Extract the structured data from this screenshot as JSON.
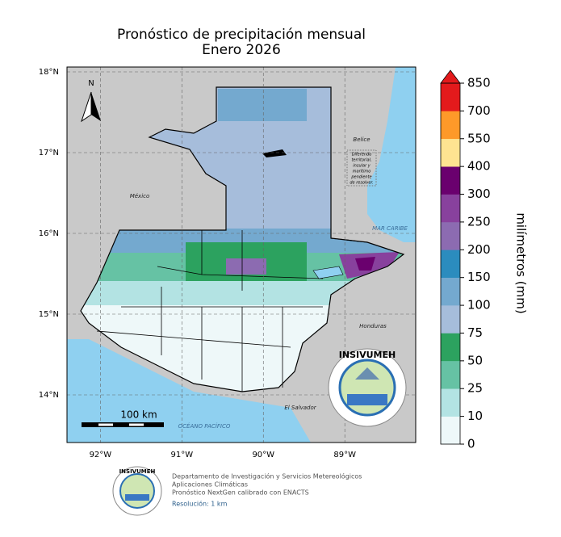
{
  "title": [
    "Pronóstico de precipitación mensual",
    "Enero 2026"
  ],
  "map": {
    "lonlim": [
      -92.41,
      -88.13
    ],
    "latlim": [
      13.41,
      18.06
    ],
    "lat_ticks": [
      {
        "value": 18,
        "label": "18°N"
      },
      {
        "value": 17,
        "label": "17°N"
      },
      {
        "value": 16,
        "label": "16°N"
      },
      {
        "value": 15,
        "label": "15°N"
      },
      {
        "value": 14,
        "label": "14°N"
      }
    ],
    "lon_ticks": [
      {
        "value": -92,
        "label": "92°W"
      },
      {
        "value": -91,
        "label": "91°W"
      },
      {
        "value": -90,
        "label": "90°W"
      },
      {
        "value": -89,
        "label": "89°W"
      }
    ],
    "labels": {
      "mexico": "México",
      "belize": "Belice",
      "dispute": [
        "Diferendo",
        "territorial,",
        "insular y",
        "marítimo",
        "pendiente",
        "de resolver."
      ],
      "caribbean": "MAR CARIBE",
      "honduras": "Honduras",
      "el_salvador": "El Salvador",
      "pacific": "OCÉANO PACÍFICO"
    },
    "north": "N",
    "scale_bar": "100 km",
    "logo_text": "INSIVUMEH"
  },
  "colorbar": {
    "label": "milímetros (mm)",
    "levels": [
      0,
      10,
      25,
      50,
      75,
      100,
      150,
      200,
      250,
      300,
      400,
      550,
      700,
      850
    ],
    "colors": [
      "#eef8f9",
      "#b3e3e3",
      "#66c2a4",
      "#2ca25f",
      "#a6bddb",
      "#74a9cf",
      "#2b8cbe",
      "#8c6bb1",
      "#88419d",
      "#6a006e",
      "#fee391",
      "#fe9929",
      "#e31a1c"
    ],
    "extend_color": "#e31a1c"
  },
  "footer": [
    "Departamento de Investigación y Servicios Metereológicos",
    "Aplicaciones Climáticas",
    "Pronóstico NextGen calibrado con ENACTS",
    "Resolución: 1 km"
  ]
}
